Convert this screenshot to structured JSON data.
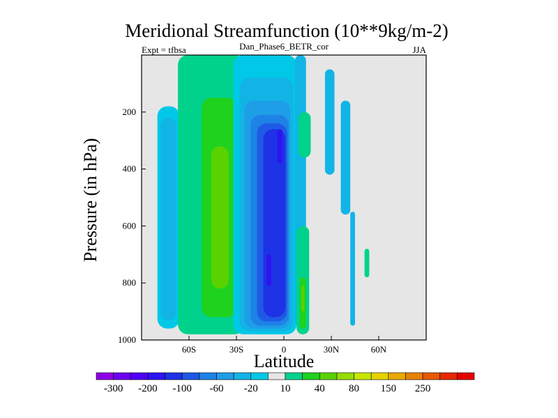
{
  "chart_data": {
    "type": "contour",
    "title": "Meridional Streamfunction (10**9kg/m-2)",
    "left_label": "Expt = tfbsa",
    "center_label": "Dan_Phase6_BETR_cor",
    "right_label": "JJA",
    "xlabel": "Latitude",
    "ylabel": "Pressure (in hPa)",
    "xlim": [
      -90,
      90
    ],
    "ylim": [
      1000,
      0
    ],
    "xticks": [
      {
        "value": -60,
        "label": "60S"
      },
      {
        "value": -30,
        "label": "30S"
      },
      {
        "value": 0,
        "label": "0"
      },
      {
        "value": 30,
        "label": "30N"
      },
      {
        "value": 60,
        "label": "60N"
      }
    ],
    "yticks": [
      {
        "value": 200,
        "label": "200"
      },
      {
        "value": 400,
        "label": "400"
      },
      {
        "value": 600,
        "label": "600"
      },
      {
        "value": 800,
        "label": "800"
      },
      {
        "value": 1000,
        "label": "1000"
      }
    ],
    "background_color": "#e6e6e6",
    "colorbar": {
      "colors": [
        "#8f00e6",
        "#6d00f0",
        "#5000f5",
        "#2d14f0",
        "#1e32e6",
        "#1e5ae6",
        "#1e82e6",
        "#1e9ee6",
        "#12b4e6",
        "#00c8e6",
        "#e6e6e6",
        "#00d28c",
        "#1ed21e",
        "#5ad200",
        "#96dc00",
        "#c8e600",
        "#e6d200",
        "#e6aa00",
        "#e68200",
        "#e65a00",
        "#e62800",
        "#e60000"
      ],
      "labels": [
        {
          "after_box": 1,
          "text": "-300"
        },
        {
          "after_box": 3,
          "text": "-200"
        },
        {
          "after_box": 5,
          "text": "-100"
        },
        {
          "after_box": 7,
          "text": "-60"
        },
        {
          "after_box": 9,
          "text": "-20"
        },
        {
          "after_box": 11,
          "text": "10"
        },
        {
          "after_box": 13,
          "text": "40"
        },
        {
          "after_box": 15,
          "text": "80"
        },
        {
          "after_box": 17,
          "text": "150"
        },
        {
          "after_box": 19,
          "text": "250"
        }
      ]
    },
    "regions": [
      {
        "name": "region-ne-light-blue",
        "color": "#12b4e6",
        "lat": [
          26,
          32
        ],
        "p": [
          50,
          420
        ]
      },
      {
        "name": "region-ne-light-blue-2",
        "color": "#12b4e6",
        "lat": [
          36,
          42
        ],
        "p": [
          160,
          560
        ]
      },
      {
        "name": "region-ne-light-blue-3",
        "color": "#12b4e6",
        "lat": [
          42,
          45
        ],
        "p": [
          550,
          950
        ]
      },
      {
        "name": "region-high-lat-south-cyan",
        "color": "#00c8e6",
        "lat": [
          -80,
          -66
        ],
        "p": [
          180,
          960
        ]
      },
      {
        "name": "region-high-lat-south-light-blue",
        "color": "#12b4e6",
        "lat": [
          -78,
          -68
        ],
        "p": [
          220,
          930
        ]
      },
      {
        "name": "region-south-cell-outer",
        "color": "#00d28c",
        "lat": [
          -67,
          -25
        ],
        "p": [
          0,
          980
        ]
      },
      {
        "name": "region-south-cell-green",
        "color": "#1ed21e",
        "lat": [
          -52,
          -30
        ],
        "p": [
          150,
          920
        ]
      },
      {
        "name": "region-south-cell-lime",
        "color": "#5ad200",
        "lat": [
          -46,
          -35
        ],
        "p": [
          320,
          820
        ]
      },
      {
        "name": "region-hadley-outer-cyan",
        "color": "#00c8e6",
        "lat": [
          -32,
          8
        ],
        "p": [
          0,
          980
        ]
      },
      {
        "name": "region-hadley-light-blue",
        "color": "#12b4e6",
        "lat": [
          -28,
          6
        ],
        "p": [
          80,
          970
        ]
      },
      {
        "name": "region-hadley-sky",
        "color": "#1e9ee6",
        "lat": [
          -25,
          4
        ],
        "p": [
          160,
          960
        ]
      },
      {
        "name": "region-hadley-mid-blue",
        "color": "#1e82e6",
        "lat": [
          -21,
          3
        ],
        "p": [
          210,
          950
        ]
      },
      {
        "name": "region-hadley-blue",
        "color": "#1e5ae6",
        "lat": [
          -17,
          2
        ],
        "p": [
          240,
          935
        ]
      },
      {
        "name": "region-hadley-deep-blue",
        "color": "#1e32e6",
        "lat": [
          -13,
          1
        ],
        "p": [
          260,
          920
        ]
      },
      {
        "name": "region-hadley-core",
        "color": "#2d14f0",
        "lat": [
          -4,
          -1
        ],
        "p": [
          260,
          380
        ]
      },
      {
        "name": "region-hadley-core-2",
        "color": "#2d14f0",
        "lat": [
          -11,
          -8
        ],
        "p": [
          700,
          810
        ]
      },
      {
        "name": "region-north-cell-light-blue",
        "color": "#12b4e6",
        "lat": [
          7,
          14
        ],
        "p": [
          0,
          950
        ]
      },
      {
        "name": "region-north-cell-green-outer",
        "color": "#00d28c",
        "lat": [
          9,
          17
        ],
        "p": [
          200,
          360
        ]
      },
      {
        "name": "region-north-cell-green-outer-2",
        "color": "#00d28c",
        "lat": [
          8,
          16
        ],
        "p": [
          600,
          980
        ]
      },
      {
        "name": "region-north-cell-green",
        "color": "#1ed21e",
        "lat": [
          10,
          14
        ],
        "p": [
          780,
          960
        ]
      },
      {
        "name": "region-north-cell-light-green",
        "color": "#5ad200",
        "lat": [
          11,
          13
        ],
        "p": [
          810,
          900
        ]
      },
      {
        "name": "region-northern-small-green",
        "color": "#00d28c",
        "lat": [
          51,
          54
        ],
        "p": [
          680,
          780
        ]
      }
    ]
  }
}
